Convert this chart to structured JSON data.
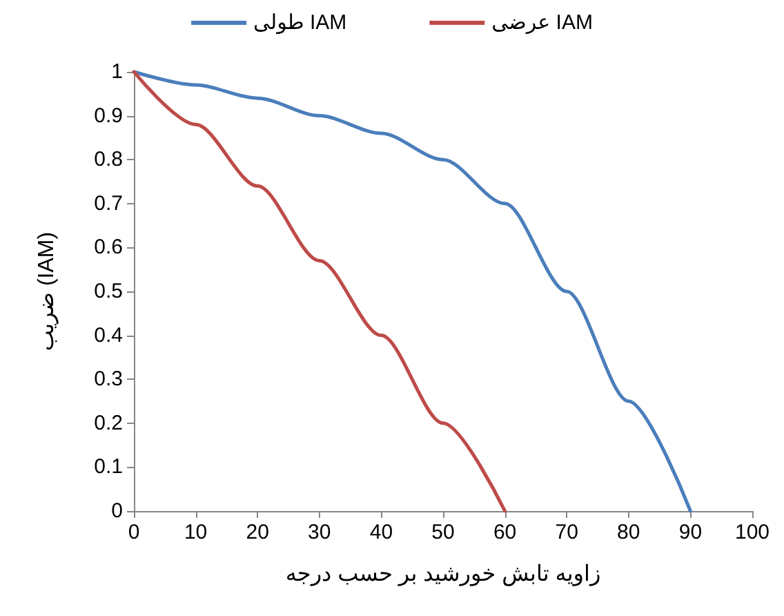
{
  "chart_data": {
    "type": "line",
    "xlabel": "زاویه تابش خورشید بر حسب درجه",
    "ylabel": "ضریب (IAM)",
    "series": [
      {
        "name": "طولی IAM",
        "color": "#4a7ebb",
        "x": [
          0,
          10,
          20,
          30,
          40,
          50,
          60,
          70,
          80,
          90
        ],
        "values": [
          1,
          0.97,
          0.94,
          0.9,
          0.86,
          0.8,
          0.7,
          0.5,
          0.25,
          0
        ]
      },
      {
        "name": "عرضی IAM",
        "color": "#be4b48",
        "x": [
          0,
          10,
          20,
          30,
          40,
          50,
          60
        ],
        "values": [
          1,
          0.88,
          0.74,
          0.57,
          0.4,
          0.2,
          0
        ]
      }
    ],
    "xlim": [
      0,
      100
    ],
    "xticks": [
      0,
      10,
      20,
      30,
      40,
      50,
      60,
      70,
      80,
      90,
      100
    ],
    "ylim": [
      0,
      1
    ],
    "yticks": [
      0,
      0.1,
      0.2,
      0.3,
      0.4,
      0.5,
      0.6,
      0.7,
      0.8,
      0.9,
      1
    ],
    "grid": false,
    "legend": "top",
    "marker": "none",
    "line_style": "solid"
  }
}
